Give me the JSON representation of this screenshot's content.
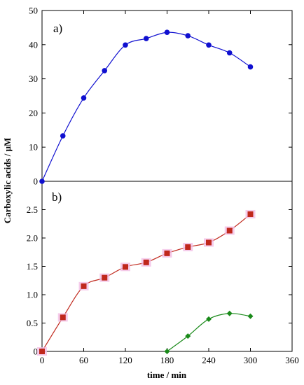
{
  "chart_data": [
    {
      "type": "line",
      "panel_label": "a)",
      "ylim": [
        0,
        50
      ],
      "yticks": [
        "0",
        "10",
        "20",
        "30",
        "40",
        "50"
      ],
      "series": [
        {
          "color": "#1010d0",
          "marker": "circle",
          "x": [
            0,
            30,
            60,
            90,
            120,
            150,
            180,
            210,
            240,
            270,
            300
          ],
          "y": [
            0,
            13.3,
            24.4,
            32.4,
            39.9,
            41.8,
            43.6,
            42.6,
            39.9,
            37.6,
            33.5
          ]
        }
      ]
    },
    {
      "type": "line",
      "panel_label": "b)",
      "ylim": [
        0,
        3
      ],
      "yticks": [
        "0",
        "0.5",
        "1.0",
        "1.5",
        "2.0",
        "2.5"
      ],
      "series": [
        {
          "color": "#c0281c",
          "halo": "#f2bfe6",
          "marker": "square",
          "x": [
            0,
            30,
            60,
            90,
            120,
            150,
            180,
            210,
            240,
            270,
            300
          ],
          "y": [
            0,
            0.6,
            1.15,
            1.3,
            1.49,
            1.57,
            1.73,
            1.84,
            1.92,
            2.13,
            2.42
          ]
        },
        {
          "color": "#1a8a1a",
          "marker": "diamond",
          "x": [
            180,
            210,
            240,
            270,
            300
          ],
          "y": [
            0,
            0.27,
            0.57,
            0.67,
            0.62
          ]
        }
      ]
    }
  ],
  "shared_x": {
    "xlim": [
      0,
      360
    ],
    "xticks": [
      "0",
      "60",
      "120",
      "180",
      "240",
      "300",
      "360"
    ],
    "xlabel": "time / min"
  },
  "ylabel": "Carboxylic acids / μM"
}
